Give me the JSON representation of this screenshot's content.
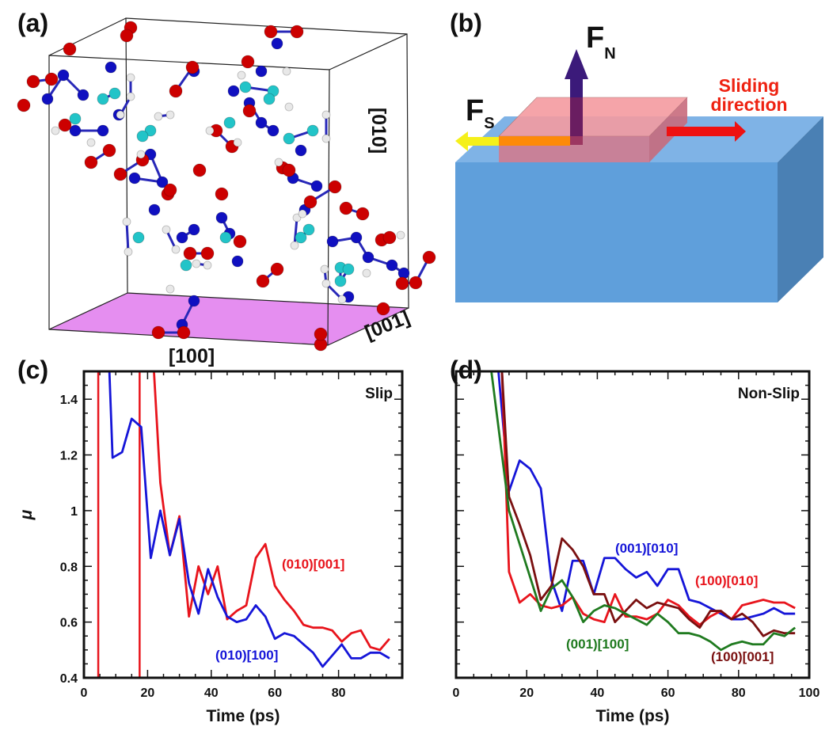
{
  "panels": {
    "a": {
      "label": "(a)",
      "axis_010": "[010]",
      "axis_100": "[100]",
      "axis_001": "[001]",
      "plane_color": "#e58ef0"
    },
    "b": {
      "label": "(b)",
      "fn_main": "F",
      "fn_sub": "N",
      "fs_main": "F",
      "fs_sub": "S",
      "sliding_line1": "Sliding",
      "sliding_line2": "direction",
      "colors": {
        "block": "#5f9fdb",
        "slab": "#e57a8a",
        "fn_arrow": "#3b1a7a",
        "fs_arrow": "#f5f01a",
        "sliding_arrow": "#ee1111",
        "sliding_text": "#ee2211"
      }
    },
    "c": {
      "label": "(c)"
    },
    "d": {
      "label": "(d)"
    }
  },
  "chart_data": [
    {
      "type": "line",
      "panel": "c",
      "annotation": "Slip",
      "xlabel": "Time (ps)",
      "ylabel": "μ",
      "xlim": [
        0,
        100
      ],
      "ylim": [
        0.4,
        1.5
      ],
      "xticks": [
        0,
        20,
        40,
        60,
        80
      ],
      "yticks": [
        0.4,
        0.6,
        0.8,
        1,
        1.2,
        1.4
      ],
      "ytick_labels": [
        "0.4",
        "0.6",
        "0.8",
        "1",
        "1.2",
        "1.4"
      ],
      "grid": false,
      "series": [
        {
          "name": "(010)[001]",
          "color": "#e8141c",
          "vlines": [
            4.5,
            17.5
          ],
          "x": [
            22,
            24,
            27,
            30,
            33,
            36,
            39,
            42,
            45,
            48,
            51,
            54,
            57,
            60,
            63,
            66,
            69,
            72,
            75,
            78,
            81,
            84,
            87,
            90,
            93,
            96
          ],
          "y": [
            1.5,
            1.1,
            0.84,
            0.98,
            0.62,
            0.8,
            0.7,
            0.8,
            0.61,
            0.64,
            0.66,
            0.83,
            0.88,
            0.73,
            0.68,
            0.64,
            0.59,
            0.58,
            0.58,
            0.57,
            0.53,
            0.56,
            0.57,
            0.51,
            0.5,
            0.54
          ]
        },
        {
          "name": "(010)[100]",
          "color": "#1515d8",
          "x": [
            8,
            9,
            12,
            15,
            18,
            21,
            24,
            27,
            30,
            33,
            36,
            39,
            42,
            45,
            48,
            51,
            54,
            57,
            60,
            63,
            66,
            69,
            72,
            75,
            78,
            81,
            84,
            87,
            90,
            93,
            96
          ],
          "y": [
            1.5,
            1.19,
            1.21,
            1.33,
            1.3,
            0.83,
            1.0,
            0.84,
            0.97,
            0.74,
            0.63,
            0.79,
            0.69,
            0.62,
            0.6,
            0.61,
            0.66,
            0.62,
            0.54,
            0.56,
            0.55,
            0.52,
            0.49,
            0.44,
            0.48,
            0.52,
            0.47,
            0.47,
            0.49,
            0.49,
            0.47
          ]
        }
      ]
    },
    {
      "type": "line",
      "panel": "d",
      "annotation": "Non-Slip",
      "xlabel": "Time (ps)",
      "xlim": [
        0,
        100
      ],
      "ylim": [
        0.4,
        1.5
      ],
      "xticks": [
        0,
        20,
        40,
        60,
        80,
        100
      ],
      "grid": false,
      "series": [
        {
          "name": "(001)[010]",
          "color": "#1515d8",
          "x": [
            12,
            15,
            18,
            21,
            24,
            27,
            30,
            33,
            36,
            39,
            42,
            45,
            48,
            51,
            54,
            57,
            60,
            63,
            66,
            69,
            72,
            75,
            78,
            81,
            84,
            87,
            90,
            93,
            96
          ],
          "y": [
            1.5,
            1.07,
            1.18,
            1.15,
            1.08,
            0.75,
            0.64,
            0.82,
            0.82,
            0.7,
            0.83,
            0.83,
            0.79,
            0.76,
            0.78,
            0.73,
            0.79,
            0.79,
            0.68,
            0.67,
            0.65,
            0.63,
            0.61,
            0.61,
            0.62,
            0.63,
            0.65,
            0.63,
            0.63
          ]
        },
        {
          "name": "(100)[010]",
          "color": "#e8141c",
          "x": [
            13,
            15,
            18,
            21,
            24,
            27,
            30,
            33,
            36,
            39,
            42,
            45,
            48,
            51,
            54,
            57,
            60,
            63,
            66,
            69,
            72,
            75,
            78,
            81,
            84,
            87,
            90,
            93,
            96
          ],
          "y": [
            1.5,
            0.78,
            0.67,
            0.7,
            0.66,
            0.65,
            0.66,
            0.69,
            0.63,
            0.61,
            0.6,
            0.7,
            0.62,
            0.62,
            0.61,
            0.63,
            0.68,
            0.66,
            0.62,
            0.59,
            0.62,
            0.64,
            0.61,
            0.66,
            0.67,
            0.68,
            0.67,
            0.67,
            0.65
          ]
        },
        {
          "name": "(100)[001]",
          "color": "#7a1010",
          "x": [
            13,
            15,
            18,
            21,
            24,
            27,
            30,
            33,
            36,
            39,
            42,
            45,
            48,
            51,
            54,
            57,
            60,
            63,
            66,
            69,
            72,
            75,
            78,
            81,
            84,
            87,
            90,
            93,
            96
          ],
          "y": [
            1.5,
            1.05,
            0.95,
            0.84,
            0.68,
            0.73,
            0.9,
            0.86,
            0.8,
            0.7,
            0.7,
            0.6,
            0.64,
            0.68,
            0.65,
            0.67,
            0.66,
            0.65,
            0.61,
            0.58,
            0.64,
            0.64,
            0.61,
            0.63,
            0.6,
            0.55,
            0.57,
            0.56,
            0.56
          ]
        },
        {
          "name": "(001)[100]",
          "color": "#1f7a1f",
          "x": [
            10,
            13,
            15,
            18,
            21,
            24,
            27,
            30,
            33,
            36,
            39,
            42,
            45,
            48,
            51,
            54,
            57,
            60,
            63,
            66,
            69,
            72,
            75,
            78,
            81,
            84,
            87,
            90,
            93,
            96
          ],
          "y": [
            1.5,
            1.2,
            1.0,
            0.88,
            0.76,
            0.64,
            0.72,
            0.75,
            0.69,
            0.6,
            0.64,
            0.66,
            0.65,
            0.63,
            0.61,
            0.59,
            0.63,
            0.6,
            0.56,
            0.56,
            0.55,
            0.53,
            0.5,
            0.52,
            0.53,
            0.52,
            0.52,
            0.56,
            0.55,
            0.58
          ]
        }
      ]
    }
  ]
}
